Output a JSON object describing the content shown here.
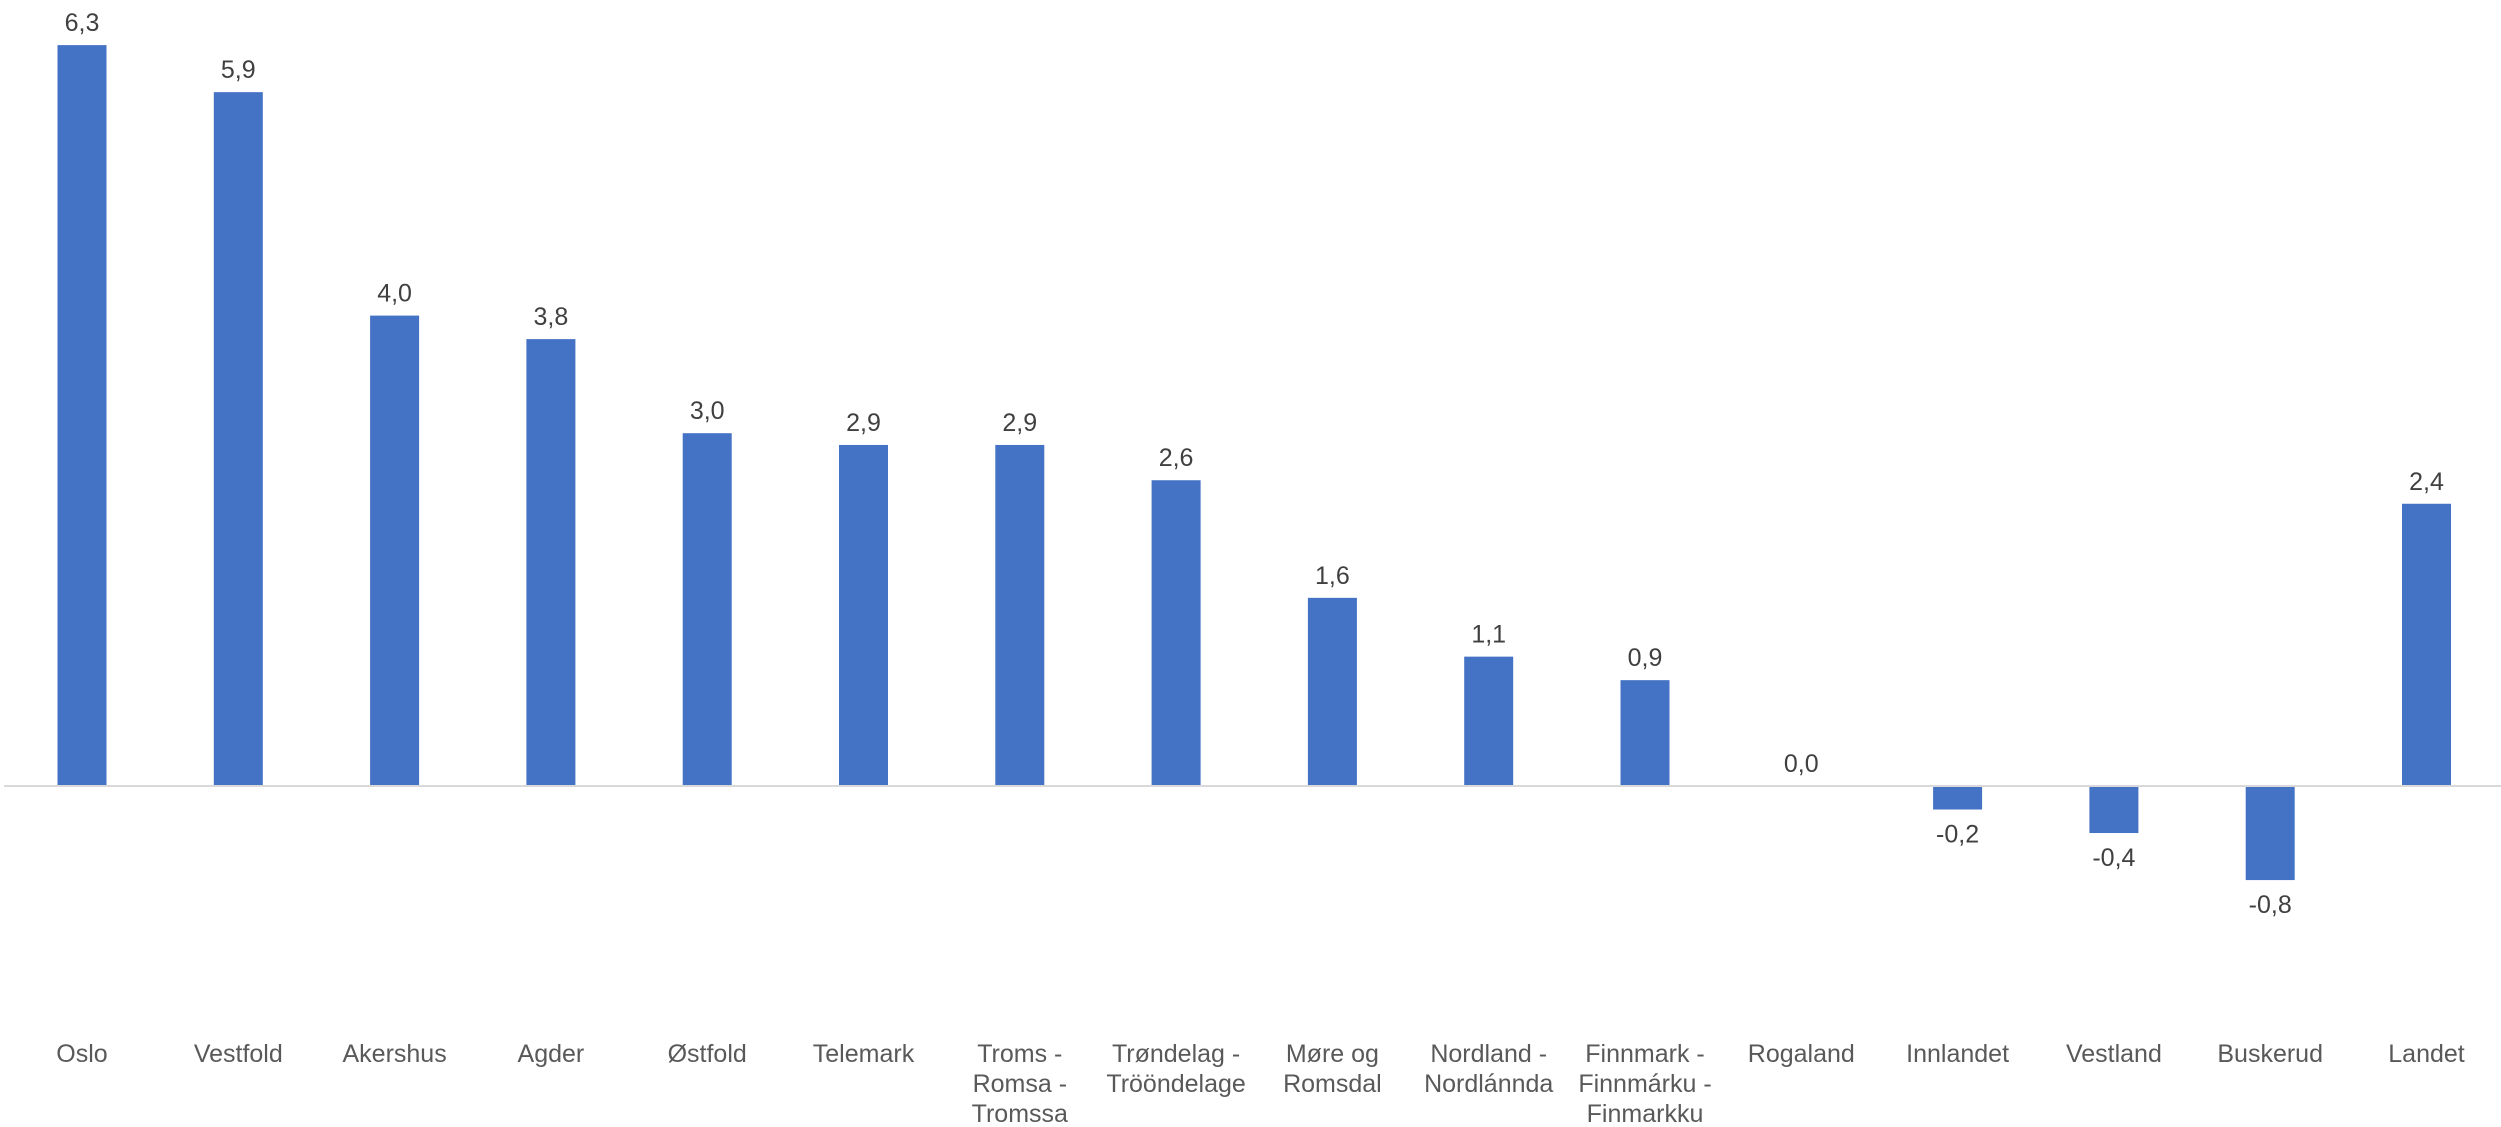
{
  "chart_data": {
    "type": "bar",
    "categories": [
      "Oslo",
      "Vestfold",
      "Akershus",
      "Agder",
      "Østfold",
      "Telemark",
      "Troms - Romsa - Tromssa",
      "Trøndelag - Trööndelage",
      "Møre og Romsdal",
      "Nordland - Nordlánnda",
      "Finnmark - Finnmárku - Finmarkku",
      "Rogaland",
      "Innlandet",
      "Vestland",
      "Buskerud",
      "Landet"
    ],
    "category_lines": [
      [
        "Oslo"
      ],
      [
        "Vestfold"
      ],
      [
        "Akershus"
      ],
      [
        "Agder"
      ],
      [
        "Østfold"
      ],
      [
        "Telemark"
      ],
      [
        "Troms -",
        "Romsa -",
        "Tromssa"
      ],
      [
        "Trøndelag -",
        "Tröönde­lage"
      ],
      [
        "Møre og",
        "Romsdal"
      ],
      [
        "Nordland -",
        "Nordlánnda"
      ],
      [
        "Finnmark -",
        "Finnmárku -",
        "Finmarkku"
      ],
      [
        "Rogaland"
      ],
      [
        "Innlandet"
      ],
      [
        "Vestland"
      ],
      [
        "Buskerud"
      ],
      [
        "Landet"
      ]
    ],
    "values": [
      6.3,
      5.9,
      4.0,
      3.8,
      3.0,
      2.9,
      2.9,
      2.6,
      1.6,
      1.1,
      0.9,
      0.0,
      -0.2,
      -0.4,
      -0.8,
      2.4
    ],
    "data_labels": [
      "6,3",
      "5,9",
      "4,0",
      "3,8",
      "3,0",
      "2,9",
      "2,9",
      "2,6",
      "1,6",
      "1,1",
      "0,9",
      "0,0",
      "-0,2",
      "-0,4",
      "-0,8",
      "2,4"
    ],
    "title": "",
    "xlabel": "",
    "ylabel": "",
    "ylim": [
      -1.2,
      6.7
    ],
    "grid": false,
    "legend": "none",
    "colors": {
      "bar": "#4472C4",
      "axis": "#D9D9D9",
      "label": "#404040",
      "category": "#595959"
    }
  }
}
